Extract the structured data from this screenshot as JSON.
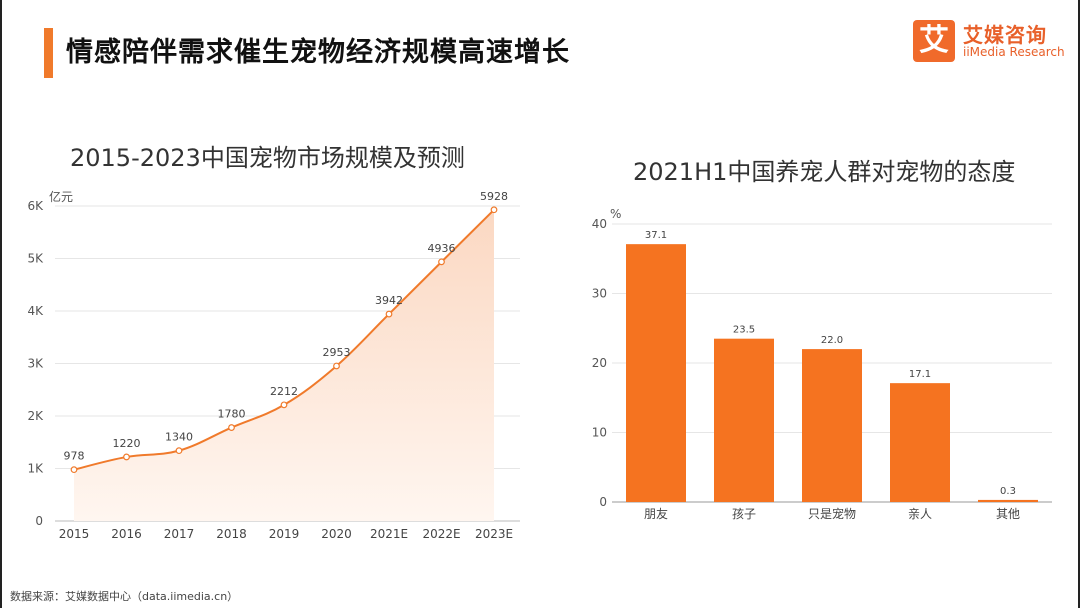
{
  "header": {
    "title": "情感陪伴需求催生宠物经济规模高速增长"
  },
  "logo": {
    "cn": "艾媒咨询",
    "en": "iiMedia Research",
    "mark": "艾"
  },
  "footer": {
    "source": "数据来源：艾媒数据中心（data.iimedia.cn）"
  },
  "colors": {
    "accent": "#f07a2b",
    "bar": "#f57320",
    "line": "#f07a2b",
    "area_top": "#fbd8c2",
    "area_bottom": "#fff6f0"
  },
  "chart_data": [
    {
      "type": "area",
      "title": "2015-2023中国宠物市场规模及预测",
      "ylabel": "亿元",
      "categories": [
        "2015",
        "2016",
        "2017",
        "2018",
        "2019",
        "2020",
        "2021E",
        "2022E",
        "2023E"
      ],
      "values": [
        978,
        1220,
        1340,
        1780,
        2212,
        2953,
        3942,
        4936,
        5928
      ],
      "ylim": [
        0,
        6000
      ],
      "yticks": [
        0,
        1000,
        2000,
        3000,
        4000,
        5000,
        6000
      ],
      "ytick_labels": [
        "0",
        "1K",
        "2K",
        "3K",
        "4K",
        "5K",
        "6K"
      ],
      "grid": true
    },
    {
      "type": "bar",
      "title": "2021H1中国养宠人群对宠物的态度",
      "ylabel": "%",
      "categories": [
        "朋友",
        "孩子",
        "只是宠物",
        "亲人",
        "其他"
      ],
      "values": [
        37.1,
        23.5,
        22.0,
        17.1,
        0.3
      ],
      "value_labels": [
        "37.1",
        "23.5",
        "22.0",
        "17.1",
        "0.3"
      ],
      "ylim": [
        0,
        40
      ],
      "yticks": [
        0,
        10,
        20,
        30,
        40
      ],
      "grid": true
    }
  ]
}
